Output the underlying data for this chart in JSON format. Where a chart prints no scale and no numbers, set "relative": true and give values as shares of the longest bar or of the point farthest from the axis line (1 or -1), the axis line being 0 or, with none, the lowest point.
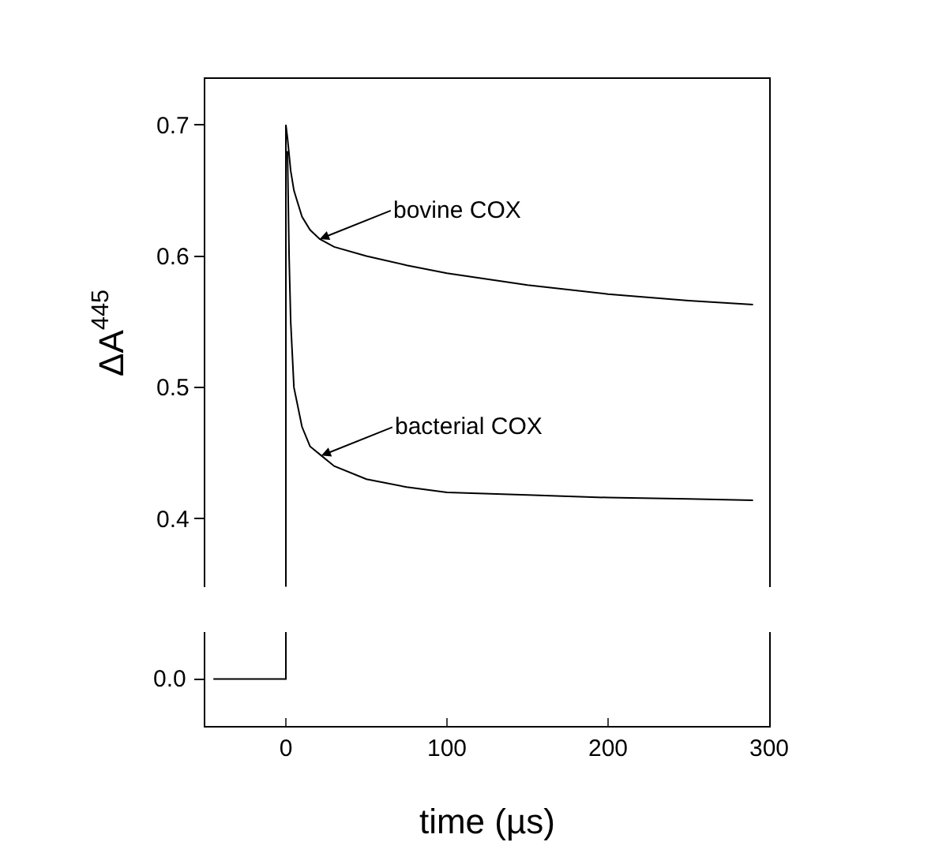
{
  "chart_data": [
    {
      "type": "line",
      "ylabel": "ΔA$^{445}$",
      "xlim": [
        -50,
        300
      ],
      "xticks": [
        0,
        100,
        200,
        300
      ],
      "ylim": [
        0.348,
        0.735
      ],
      "yticks": [
        0.4,
        0.5,
        0.6,
        0.7
      ],
      "tick_labels": "y",
      "series": [
        {
          "color": "#000000",
          "x": [
            0,
            0,
            1,
            3,
            5,
            10,
            15,
            21,
            30,
            50,
            75,
            100,
            150,
            200,
            250,
            290
          ],
          "values": [
            0.348,
            0.7,
            0.69,
            0.665,
            0.65,
            0.63,
            0.62,
            0.613,
            0.607,
            0.6,
            0.593,
            0.587,
            0.578,
            0.571,
            0.566,
            0.563
          ]
        },
        {
          "color": "#000000",
          "x": [
            1,
            2,
            3,
            5,
            10,
            15,
            22,
            30,
            50,
            75,
            100,
            150,
            200,
            250,
            290
          ],
          "values": [
            0.68,
            0.6,
            0.55,
            0.5,
            0.47,
            0.455,
            0.448,
            0.44,
            0.43,
            0.424,
            0.42,
            0.418,
            0.416,
            0.415,
            0.414
          ]
        }
      ],
      "annotations": [
        {
          "text": "bovine COX",
          "x": 21,
          "y": 0.613
        },
        {
          "text": "bacterial COX",
          "x": 22,
          "y": 0.448
        }
      ]
    },
    {
      "type": "line",
      "xlabel": "time (µs)",
      "xlim": [
        -50,
        300
      ],
      "xticks": [
        0,
        100,
        200,
        300
      ],
      "relative": true,
      "tick_labels": "x",
      "series": [
        {
          "color": "#000000",
          "x": [
            -45,
            -30,
            -15,
            0,
            0
          ],
          "values": [
            0.5,
            0.5,
            0.5,
            0.5,
            1
          ]
        }
      ],
      "annotations": [
        "0.0"
      ]
    }
  ]
}
